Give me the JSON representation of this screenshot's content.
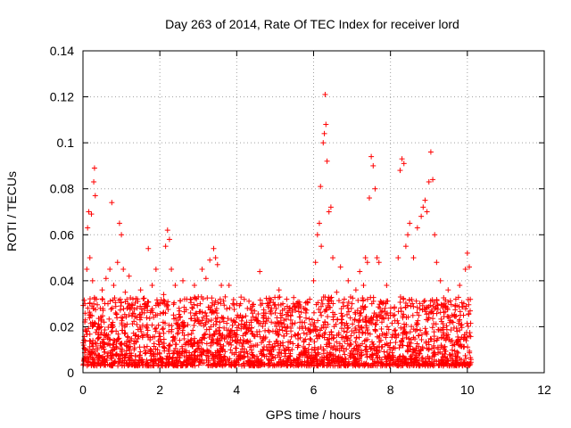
{
  "chart_data": {
    "type": "scatter",
    "title": "Day 263 of 2014, Rate Of TEC Index for receiver lord",
    "xlabel": "GPS time / hours",
    "ylabel": "ROTI / TECUs",
    "xlim": [
      0,
      12
    ],
    "ylim": [
      0,
      0.14
    ],
    "x_ticks": [
      "0",
      "2",
      "4",
      "6",
      "8",
      "10",
      "12"
    ],
    "y_ticks": [
      "0",
      "0.02",
      "0.04",
      "0.06",
      "0.08",
      "0.1",
      "0.12",
      "0.14"
    ],
    "grid": true,
    "marker": "plus",
    "color": "#ff0000",
    "series": [
      {
        "points": [
          [
            0.02,
            0.012
          ],
          [
            0.05,
            0.03
          ],
          [
            0.08,
            0.018
          ],
          [
            0.1,
            0.045
          ],
          [
            0.12,
            0.063
          ],
          [
            0.15,
            0.07
          ],
          [
            0.18,
            0.05
          ],
          [
            0.2,
            0.025
          ],
          [
            0.22,
            0.069
          ],
          [
            0.25,
            0.04
          ],
          [
            0.28,
            0.083
          ],
          [
            0.3,
            0.089
          ],
          [
            0.32,
            0.077
          ],
          [
            0.35,
            0.032
          ],
          [
            0.38,
            0.02
          ],
          [
            0.4,
            0.015
          ],
          [
            0.45,
            0.028
          ],
          [
            0.5,
            0.036
          ],
          [
            0.55,
            0.022
          ],
          [
            0.6,
            0.041
          ],
          [
            0.65,
            0.03
          ],
          [
            0.7,
            0.045
          ],
          [
            0.75,
            0.074
          ],
          [
            0.8,
            0.038
          ],
          [
            0.85,
            0.026
          ],
          [
            0.9,
            0.048
          ],
          [
            0.95,
            0.065
          ],
          [
            1.0,
            0.06
          ],
          [
            1.05,
            0.045
          ],
          [
            1.1,
            0.035
          ],
          [
            1.15,
            0.028
          ],
          [
            1.2,
            0.042
          ],
          [
            1.3,
            0.032
          ],
          [
            1.4,
            0.024
          ],
          [
            1.5,
            0.036
          ],
          [
            1.6,
            0.028
          ],
          [
            1.7,
            0.054
          ],
          [
            1.8,
            0.038
          ],
          [
            1.9,
            0.045
          ],
          [
            2.0,
            0.03
          ],
          [
            2.1,
            0.034
          ],
          [
            2.15,
            0.055
          ],
          [
            2.2,
            0.062
          ],
          [
            2.25,
            0.058
          ],
          [
            2.3,
            0.045
          ],
          [
            2.4,
            0.038
          ],
          [
            2.5,
            0.028
          ],
          [
            2.6,
            0.04
          ],
          [
            2.7,
            0.032
          ],
          [
            2.8,
            0.026
          ],
          [
            2.9,
            0.038
          ],
          [
            3.0,
            0.033
          ],
          [
            3.1,
            0.045
          ],
          [
            3.2,
            0.041
          ],
          [
            3.3,
            0.049
          ],
          [
            3.4,
            0.054
          ],
          [
            3.45,
            0.05
          ],
          [
            3.5,
            0.047
          ],
          [
            3.6,
            0.038
          ],
          [
            3.7,
            0.033
          ],
          [
            3.8,
            0.038
          ],
          [
            3.9,
            0.03
          ],
          [
            4.0,
            0.024
          ],
          [
            4.1,
            0.03
          ],
          [
            4.2,
            0.021
          ],
          [
            4.3,
            0.019
          ],
          [
            4.4,
            0.017
          ],
          [
            4.5,
            0.012
          ],
          [
            4.6,
            0.044
          ],
          [
            4.7,
            0.025
          ],
          [
            4.8,
            0.03
          ],
          [
            4.9,
            0.022
          ],
          [
            5.0,
            0.026
          ],
          [
            5.1,
            0.036
          ],
          [
            5.2,
            0.03
          ],
          [
            5.3,
            0.032
          ],
          [
            5.4,
            0.025
          ],
          [
            5.5,
            0.029
          ],
          [
            5.6,
            0.03
          ],
          [
            5.7,
            0.022
          ],
          [
            5.8,
            0.026
          ],
          [
            5.9,
            0.032
          ],
          [
            6.0,
            0.04
          ],
          [
            6.05,
            0.048
          ],
          [
            6.1,
            0.06
          ],
          [
            6.15,
            0.065
          ],
          [
            6.18,
            0.081
          ],
          [
            6.2,
            0.055
          ],
          [
            6.25,
            0.1
          ],
          [
            6.28,
            0.104
          ],
          [
            6.3,
            0.121
          ],
          [
            6.32,
            0.108
          ],
          [
            6.35,
            0.092
          ],
          [
            6.4,
            0.07
          ],
          [
            6.45,
            0.072
          ],
          [
            6.5,
            0.05
          ],
          [
            6.6,
            0.035
          ],
          [
            6.7,
            0.046
          ],
          [
            6.8,
            0.032
          ],
          [
            6.9,
            0.04
          ],
          [
            7.0,
            0.03
          ],
          [
            7.1,
            0.036
          ],
          [
            7.2,
            0.044
          ],
          [
            7.3,
            0.038
          ],
          [
            7.35,
            0.05
          ],
          [
            7.4,
            0.048
          ],
          [
            7.45,
            0.076
          ],
          [
            7.5,
            0.094
          ],
          [
            7.55,
            0.09
          ],
          [
            7.6,
            0.08
          ],
          [
            7.65,
            0.05
          ],
          [
            7.7,
            0.048
          ],
          [
            7.8,
            0.03
          ],
          [
            7.9,
            0.038
          ],
          [
            8.0,
            0.025
          ],
          [
            8.1,
            0.028
          ],
          [
            8.2,
            0.05
          ],
          [
            8.25,
            0.088
          ],
          [
            8.3,
            0.093
          ],
          [
            8.35,
            0.091
          ],
          [
            8.4,
            0.055
          ],
          [
            8.45,
            0.06
          ],
          [
            8.5,
            0.065
          ],
          [
            8.6,
            0.05
          ],
          [
            8.7,
            0.063
          ],
          [
            8.8,
            0.068
          ],
          [
            8.85,
            0.072
          ],
          [
            8.9,
            0.075
          ],
          [
            8.95,
            0.07
          ],
          [
            9.0,
            0.083
          ],
          [
            9.05,
            0.096
          ],
          [
            9.1,
            0.084
          ],
          [
            9.15,
            0.06
          ],
          [
            9.2,
            0.048
          ],
          [
            9.3,
            0.04
          ],
          [
            9.4,
            0.03
          ],
          [
            9.5,
            0.036
          ],
          [
            9.6,
            0.025
          ],
          [
            9.7,
            0.032
          ],
          [
            9.8,
            0.038
          ],
          [
            9.9,
            0.025
          ],
          [
            9.95,
            0.045
          ],
          [
            10.0,
            0.052
          ],
          [
            10.05,
            0.046
          ]
        ]
      }
    ],
    "note_dense_band": "Dense cloud of points between 0.003 and 0.03 from x=0 to x=10.1"
  }
}
